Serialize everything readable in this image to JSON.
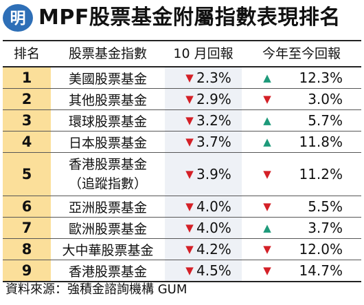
{
  "header": {
    "logo_text": "明",
    "title": "MPF股票基金附屬指數表現排名"
  },
  "table": {
    "columns": [
      "排名",
      "股票基金指數",
      "10 月回報",
      "今年至今回報"
    ],
    "rows": [
      {
        "rank": "1",
        "name": "美國股票基金",
        "name_line2": "",
        "m10_dir": "down",
        "m10": "2.3%",
        "ytd_dir": "up",
        "ytd": "12.3%"
      },
      {
        "rank": "2",
        "name": "其他股票基金",
        "name_line2": "",
        "m10_dir": "down",
        "m10": "2.9%",
        "ytd_dir": "down",
        "ytd": "3.0%"
      },
      {
        "rank": "3",
        "name": "環球股票基金",
        "name_line2": "",
        "m10_dir": "down",
        "m10": "3.2%",
        "ytd_dir": "up",
        "ytd": "5.7%"
      },
      {
        "rank": "4",
        "name": "日本股票基金",
        "name_line2": "",
        "m10_dir": "down",
        "m10": "3.7%",
        "ytd_dir": "up",
        "ytd": "11.8%"
      },
      {
        "rank": "5",
        "name": "香港股票基金",
        "name_line2": "（追蹤指數）",
        "m10_dir": "down",
        "m10": "3.9%",
        "ytd_dir": "down",
        "ytd": "11.2%"
      },
      {
        "rank": "6",
        "name": "亞洲股票基金",
        "name_line2": "",
        "m10_dir": "down",
        "m10": "4.0%",
        "ytd_dir": "down",
        "ytd": "5.5%"
      },
      {
        "rank": "7",
        "name": "歐洲股票基金",
        "name_line2": "",
        "m10_dir": "down",
        "m10": "4.0%",
        "ytd_dir": "up",
        "ytd": "3.7%"
      },
      {
        "rank": "8",
        "name": "大中華股票基金",
        "name_line2": "",
        "m10_dir": "down",
        "m10": "4.2%",
        "ytd_dir": "down",
        "ytd": "12.0%"
      },
      {
        "rank": "9",
        "name": "香港股票基金",
        "name_line2": "",
        "m10_dir": "down",
        "m10": "4.5%",
        "ytd_dir": "down",
        "ytd": "14.7%"
      }
    ]
  },
  "footer": {
    "source": "資料來源：強積金諮詢機構 GUM"
  },
  "colors": {
    "logo_blue": "#2e6fb7",
    "rank_bg": "#fbdf9a",
    "m10_bg": "#eef1f6",
    "down_red": "#d42027",
    "up_green": "#1e9a7a"
  },
  "icons": {
    "down": "down-triangle-icon",
    "up": "up-triangle-icon"
  }
}
